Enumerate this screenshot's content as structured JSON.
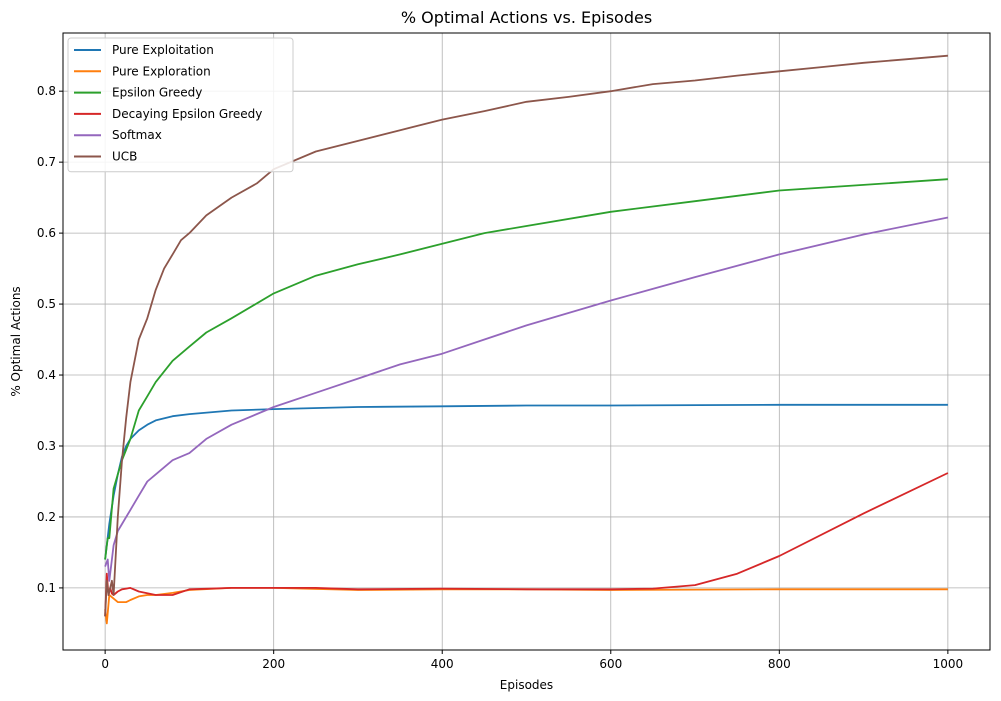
{
  "chart_data": {
    "type": "line",
    "title": "% Optimal Actions vs. Episodes",
    "xlabel": "Episodes",
    "ylabel": "% Optimal Actions",
    "xlim": [
      -50,
      1050
    ],
    "ylim": [
      0.0125,
      0.882
    ],
    "xticks": [
      0,
      200,
      400,
      600,
      800,
      1000
    ],
    "xtick_labels": [
      "0",
      "200",
      "400",
      "600",
      "800",
      "1000"
    ],
    "yticks": [
      0.1,
      0.2,
      0.3,
      0.4,
      0.5,
      0.6,
      0.7,
      0.8
    ],
    "ytick_labels": [
      "0.1",
      "0.2",
      "0.3",
      "0.4",
      "0.5",
      "0.6",
      "0.7",
      "0.8"
    ],
    "grid": true,
    "legend_position": "top-left",
    "series": [
      {
        "name": "Pure Exploitation",
        "color": "#1f77b4",
        "x": [
          0,
          5,
          10,
          15,
          20,
          25,
          30,
          40,
          50,
          60,
          80,
          100,
          150,
          200,
          300,
          400,
          500,
          600,
          800,
          1000
        ],
        "y": [
          0.14,
          0.19,
          0.23,
          0.26,
          0.285,
          0.3,
          0.31,
          0.322,
          0.33,
          0.336,
          0.342,
          0.345,
          0.35,
          0.352,
          0.355,
          0.356,
          0.357,
          0.357,
          0.358,
          0.358
        ]
      },
      {
        "name": "Pure Exploration",
        "color": "#ff7f0e",
        "x": [
          0,
          2,
          5,
          10,
          15,
          20,
          25,
          30,
          40,
          50,
          60,
          80,
          100,
          150,
          200,
          300,
          400,
          500,
          600,
          800,
          1000
        ],
        "y": [
          0.07,
          0.05,
          0.09,
          0.085,
          0.08,
          0.08,
          0.08,
          0.083,
          0.088,
          0.09,
          0.09,
          0.093,
          0.097,
          0.1,
          0.1,
          0.097,
          0.098,
          0.098,
          0.097,
          0.098,
          0.098
        ]
      },
      {
        "name": "Epsilon Greedy",
        "color": "#2ca02c",
        "x": [
          0,
          3,
          5,
          10,
          15,
          20,
          30,
          40,
          50,
          60,
          80,
          100,
          120,
          150,
          200,
          250,
          300,
          350,
          400,
          450,
          500,
          600,
          700,
          800,
          900,
          1000
        ],
        "y": [
          0.14,
          0.17,
          0.17,
          0.24,
          0.26,
          0.28,
          0.31,
          0.35,
          0.37,
          0.39,
          0.42,
          0.44,
          0.46,
          0.48,
          0.515,
          0.54,
          0.556,
          0.57,
          0.585,
          0.6,
          0.61,
          0.63,
          0.645,
          0.66,
          0.668,
          0.676
        ]
      },
      {
        "name": "Decaying Epsilon Greedy",
        "color": "#d62728",
        "x": [
          0,
          2,
          4,
          6,
          8,
          10,
          15,
          20,
          30,
          40,
          60,
          80,
          100,
          150,
          200,
          250,
          300,
          400,
          500,
          600,
          650,
          700,
          750,
          800,
          900,
          1000
        ],
        "y": [
          0.06,
          0.12,
          0.09,
          0.1,
          0.092,
          0.09,
          0.095,
          0.098,
          0.1,
          0.095,
          0.09,
          0.09,
          0.098,
          0.1,
          0.1,
          0.1,
          0.098,
          0.099,
          0.098,
          0.098,
          0.099,
          0.104,
          0.12,
          0.145,
          0.205,
          0.262
        ]
      },
      {
        "name": "Softmax",
        "color": "#9467bd",
        "x": [
          0,
          3,
          5,
          8,
          10,
          15,
          20,
          30,
          40,
          50,
          60,
          80,
          100,
          120,
          150,
          200,
          250,
          300,
          350,
          400,
          450,
          500,
          600,
          700,
          800,
          900,
          1000
        ],
        "y": [
          0.13,
          0.14,
          0.11,
          0.14,
          0.16,
          0.18,
          0.19,
          0.21,
          0.23,
          0.25,
          0.26,
          0.28,
          0.29,
          0.31,
          0.33,
          0.355,
          0.375,
          0.395,
          0.415,
          0.43,
          0.45,
          0.47,
          0.505,
          0.538,
          0.57,
          0.598,
          0.622
        ]
      },
      {
        "name": "UCB",
        "color": "#8c564b",
        "x": [
          0,
          2,
          4,
          6,
          8,
          10,
          15,
          20,
          25,
          30,
          40,
          50,
          60,
          70,
          80,
          90,
          100,
          120,
          150,
          180,
          200,
          250,
          300,
          350,
          400,
          450,
          500,
          550,
          600,
          650,
          700,
          750,
          800,
          850,
          900,
          950,
          1000
        ],
        "y": [
          0.06,
          0.11,
          0.09,
          0.1,
          0.11,
          0.09,
          0.2,
          0.28,
          0.34,
          0.39,
          0.45,
          0.48,
          0.52,
          0.55,
          0.57,
          0.59,
          0.6,
          0.625,
          0.65,
          0.67,
          0.69,
          0.715,
          0.73,
          0.745,
          0.76,
          0.772,
          0.785,
          0.792,
          0.8,
          0.81,
          0.815,
          0.822,
          0.828,
          0.834,
          0.84,
          0.845,
          0.85
        ]
      }
    ]
  }
}
